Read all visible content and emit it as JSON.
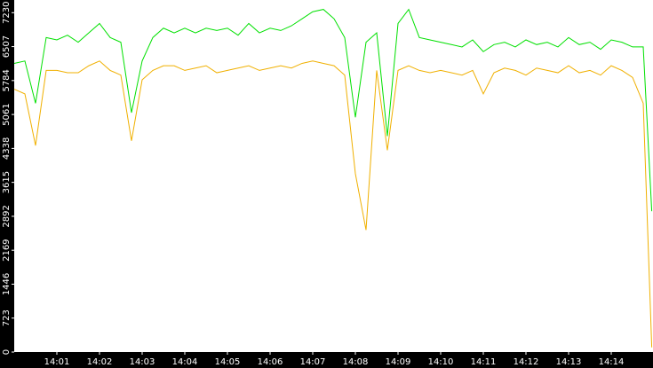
{
  "chart_data": {
    "type": "line",
    "x": [
      0,
      0.25,
      0.5,
      0.75,
      1,
      1.25,
      1.5,
      1.75,
      2,
      2.25,
      2.5,
      2.75,
      3,
      3.25,
      3.5,
      3.75,
      4,
      4.25,
      4.5,
      4.75,
      5,
      5.25,
      5.5,
      5.75,
      6,
      6.25,
      6.5,
      6.75,
      7,
      7.25,
      7.5,
      7.75,
      8,
      8.25,
      8.5,
      8.75,
      9,
      9.25,
      9.5,
      9.75,
      10,
      10.25,
      10.5,
      10.75,
      11,
      11.25,
      11.5,
      11.75,
      12,
      12.25,
      12.5,
      12.75,
      13,
      13.25,
      13.5,
      13.75,
      14,
      14.25,
      14.5,
      14.75,
      14.95
    ],
    "series": [
      {
        "name": "green",
        "color": "#00e000",
        "values": [
          6150,
          6200,
          5300,
          6700,
          6650,
          6750,
          6600,
          6800,
          7000,
          6700,
          6600,
          5100,
          6200,
          6700,
          6900,
          6800,
          6900,
          6800,
          6900,
          6850,
          6900,
          6750,
          7000,
          6800,
          6900,
          6850,
          6950,
          7100,
          7250,
          7300,
          7100,
          6700,
          5000,
          6600,
          6800,
          4600,
          7000,
          7300,
          6700,
          6650,
          6600,
          6550,
          6500,
          6650,
          6400,
          6550,
          6600,
          6500,
          6650,
          6550,
          6600,
          6500,
          6700,
          6550,
          6600,
          6450,
          6650,
          6600,
          6500,
          6500,
          3000
        ]
      },
      {
        "name": "orange",
        "color": "#f0b000",
        "values": [
          5600,
          5500,
          4400,
          6000,
          6000,
          5950,
          5950,
          6100,
          6200,
          6000,
          5900,
          4500,
          5800,
          6000,
          6100,
          6100,
          6000,
          6050,
          6100,
          5950,
          6000,
          6050,
          6100,
          6000,
          6050,
          6100,
          6050,
          6150,
          6200,
          6150,
          6100,
          5900,
          3800,
          2600,
          6000,
          4300,
          6000,
          6100,
          6000,
          5950,
          6000,
          5950,
          5900,
          6000,
          5500,
          5950,
          6050,
          6000,
          5900,
          6050,
          6000,
          5950,
          6100,
          5950,
          6000,
          5900,
          6100,
          6000,
          5850,
          5300,
          100
        ]
      }
    ],
    "xlim": [
      0,
      15
    ],
    "xticks": [
      {
        "value": 1,
        "label": "14:01"
      },
      {
        "value": 2,
        "label": "14:02"
      },
      {
        "value": 3,
        "label": "14:03"
      },
      {
        "value": 4,
        "label": "14:04"
      },
      {
        "value": 5,
        "label": "14:05"
      },
      {
        "value": 6,
        "label": "14:06"
      },
      {
        "value": 7,
        "label": "14:07"
      },
      {
        "value": 8,
        "label": "14:08"
      },
      {
        "value": 9,
        "label": "14:09"
      },
      {
        "value": 10,
        "label": "14:10"
      },
      {
        "value": 11,
        "label": "14:11"
      },
      {
        "value": 12,
        "label": "14:12"
      },
      {
        "value": 13,
        "label": "14:13"
      },
      {
        "value": 14,
        "label": "14:14"
      }
    ],
    "ylim": [
      0,
      7500
    ],
    "yticks": [
      0,
      723,
      1446,
      2169,
      2892,
      3615,
      4338,
      5061,
      5784,
      6507,
      7230
    ]
  }
}
